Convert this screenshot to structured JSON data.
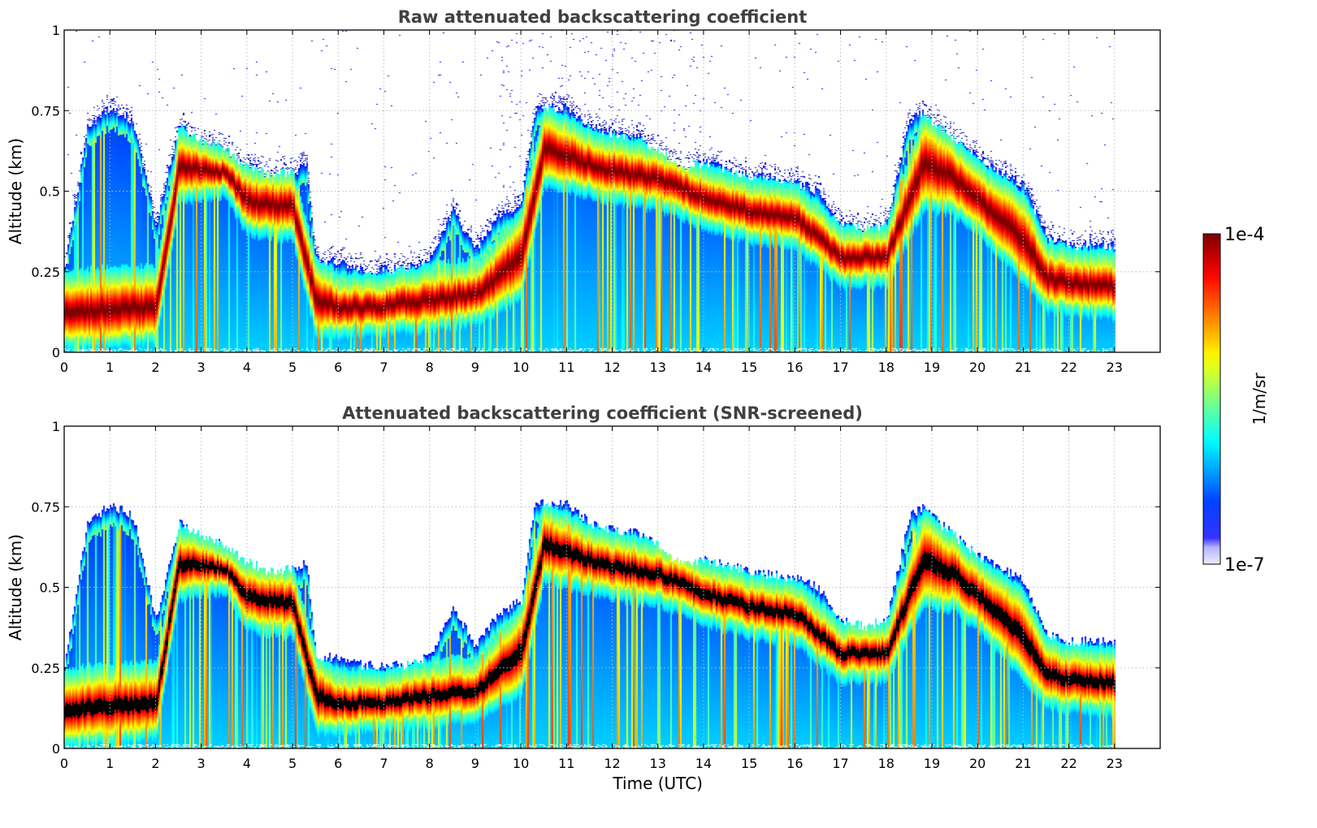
{
  "chart_data": [
    {
      "type": "heatmap",
      "title": "Raw attenuated backscattering coefficient",
      "xlabel": "",
      "ylabel": "Altitude (km)",
      "xlim": [
        0,
        24
      ],
      "ylim": [
        0,
        1
      ],
      "xticks": [
        0,
        1,
        2,
        3,
        4,
        5,
        6,
        7,
        8,
        9,
        10,
        11,
        12,
        13,
        14,
        15,
        16,
        17,
        18,
        19,
        20,
        21,
        22,
        23
      ],
      "yticks": [
        0,
        0.25,
        0.5,
        0.75,
        1
      ],
      "ytick_labels": [
        "0",
        "0.25",
        "0.5",
        "0.75",
        "1"
      ],
      "grid": true,
      "data_end_time": 23,
      "layer_top_km": [
        [
          0,
          0.26
        ],
        [
          0.5,
          0.7
        ],
        [
          1,
          0.76
        ],
        [
          1.5,
          0.72
        ],
        [
          2,
          0.4
        ],
        [
          2.5,
          0.7
        ],
        [
          3,
          0.66
        ],
        [
          3.5,
          0.63
        ],
        [
          4,
          0.58
        ],
        [
          4.5,
          0.55
        ],
        [
          5,
          0.56
        ],
        [
          5.3,
          0.58
        ],
        [
          5.5,
          0.29
        ],
        [
          6,
          0.28
        ],
        [
          6.5,
          0.26
        ],
        [
          7,
          0.26
        ],
        [
          7.5,
          0.26
        ],
        [
          8,
          0.29
        ],
        [
          8.5,
          0.44
        ],
        [
          9,
          0.32
        ],
        [
          9.5,
          0.42
        ],
        [
          10,
          0.46
        ],
        [
          10.3,
          0.76
        ],
        [
          11,
          0.76
        ],
        [
          11.5,
          0.7
        ],
        [
          12,
          0.68
        ],
        [
          12.5,
          0.67
        ],
        [
          13,
          0.63
        ],
        [
          13.5,
          0.57
        ],
        [
          14,
          0.59
        ],
        [
          14.5,
          0.57
        ],
        [
          15,
          0.55
        ],
        [
          15.5,
          0.54
        ],
        [
          16,
          0.53
        ],
        [
          16.5,
          0.5
        ],
        [
          17,
          0.4
        ],
        [
          17.5,
          0.38
        ],
        [
          18,
          0.4
        ],
        [
          18.5,
          0.72
        ],
        [
          18.8,
          0.75
        ],
        [
          19,
          0.72
        ],
        [
          19.5,
          0.66
        ],
        [
          20,
          0.6
        ],
        [
          20.5,
          0.56
        ],
        [
          21,
          0.52
        ],
        [
          21.5,
          0.36
        ],
        [
          22,
          0.33
        ],
        [
          22.5,
          0.34
        ],
        [
          23,
          0.33
        ]
      ],
      "dense_layer_km": [
        [
          0,
          0.04,
          0.2
        ],
        [
          1,
          0.05,
          0.22
        ],
        [
          2,
          0.06,
          0.22
        ],
        [
          2.5,
          0.5,
          0.65
        ],
        [
          3.5,
          0.52,
          0.6
        ],
        [
          4,
          0.4,
          0.54
        ],
        [
          5,
          0.38,
          0.52
        ],
        [
          5.5,
          0.08,
          0.25
        ],
        [
          6,
          0.08,
          0.2
        ],
        [
          7,
          0.09,
          0.2
        ],
        [
          8,
          0.1,
          0.23
        ],
        [
          9,
          0.12,
          0.24
        ],
        [
          10,
          0.2,
          0.4
        ],
        [
          10.5,
          0.55,
          0.72
        ],
        [
          11.5,
          0.52,
          0.65
        ],
        [
          12,
          0.5,
          0.63
        ],
        [
          13,
          0.48,
          0.6
        ],
        [
          14,
          0.42,
          0.54
        ],
        [
          15,
          0.38,
          0.5
        ],
        [
          16,
          0.36,
          0.48
        ],
        [
          17,
          0.24,
          0.35
        ],
        [
          18,
          0.24,
          0.35
        ],
        [
          18.8,
          0.48,
          0.7
        ],
        [
          19.5,
          0.46,
          0.62
        ],
        [
          20,
          0.4,
          0.55
        ],
        [
          21,
          0.25,
          0.45
        ],
        [
          21.5,
          0.16,
          0.3
        ],
        [
          22,
          0.15,
          0.28
        ],
        [
          23,
          0.14,
          0.27
        ]
      ]
    },
    {
      "type": "heatmap",
      "title": "Attenuated backscattering coefficient (SNR-screened)",
      "xlabel": "Time (UTC)",
      "ylabel": "Altitude (km)",
      "xlim": [
        0,
        24
      ],
      "ylim": [
        0,
        1
      ],
      "xticks": [
        0,
        1,
        2,
        3,
        4,
        5,
        6,
        7,
        8,
        9,
        10,
        11,
        12,
        13,
        14,
        15,
        16,
        17,
        18,
        19,
        20,
        21,
        22,
        23
      ],
      "yticks": [
        0,
        0.25,
        0.5,
        0.75,
        1
      ],
      "ytick_labels": [
        "0",
        "0.25",
        "0.5",
        "0.75",
        "1"
      ],
      "grid": true,
      "saturated_color": "#000000",
      "data_end_time": 23
    }
  ],
  "colorbar": {
    "label": "1/m/sr",
    "max_label": "1e-4",
    "min_label": "1e-7",
    "colormap": "jet"
  }
}
